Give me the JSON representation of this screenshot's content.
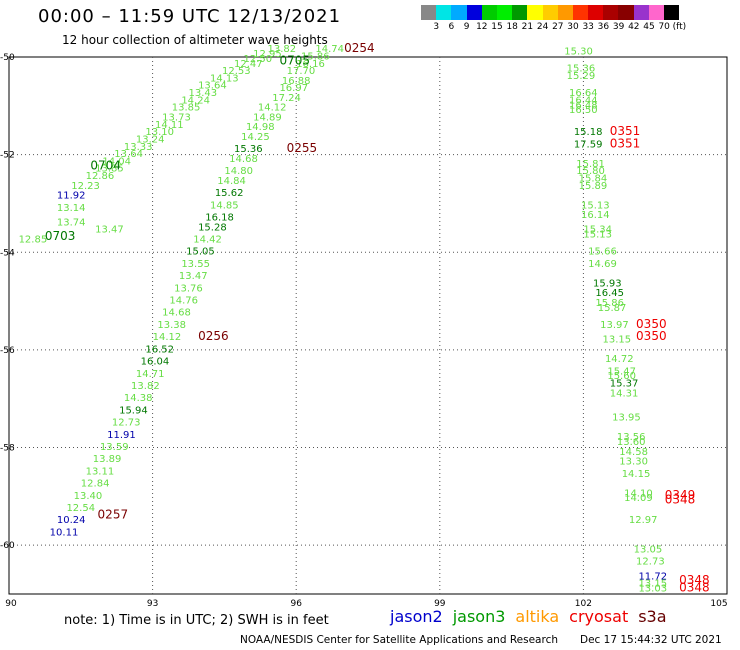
{
  "header": {
    "title": "00:00 – 11:59 UTC 12/13/2021",
    "subtitle": "12 hour collection of altimeter wave heights"
  },
  "scale": {
    "colors": [
      "#888888",
      "#00e5e5",
      "#00aaff",
      "#0000dd",
      "#00cc00",
      "#00ee00",
      "#009900",
      "#ffff00",
      "#ffcc00",
      "#ff9900",
      "#ff3300",
      "#dd0000",
      "#aa0000",
      "#880000",
      "#9933cc",
      "#ff66cc",
      "#000000"
    ],
    "labels": [
      "3",
      "6",
      "9",
      "12",
      "15",
      "18",
      "21",
      "24",
      "27",
      "30",
      "33",
      "36",
      "39",
      "42",
      "45",
      "70",
      "(ft)"
    ]
  },
  "axes": {
    "x_ticks": [
      "90",
      "93",
      "96",
      "99",
      "102",
      "105"
    ],
    "y_ticks": [
      "-50",
      "-52",
      "-54",
      "-56",
      "-58",
      "-60"
    ]
  },
  "colors": {
    "light": "#66dd44",
    "dark": "#007700",
    "jason2": "#0000aa",
    "time_dark": "#7a0000",
    "time_red": "#ee0000"
  },
  "track_a": [
    {
      "x": 91.8,
      "y": -53.6,
      "t": "13.47",
      "c": "light"
    },
    {
      "x": 90.2,
      "y": -53.8,
      "t": "12.85",
      "c": "light"
    },
    {
      "x": 91.0,
      "y": -53.45,
      "t": "13.74",
      "c": "light"
    },
    {
      "x": 91.0,
      "y": -53.15,
      "t": "13.14",
      "c": "light"
    },
    {
      "x": 91.0,
      "y": -52.9,
      "t": "11.92",
      "c": "jason2"
    },
    {
      "x": 91.3,
      "y": -52.7,
      "t": "12.23",
      "c": "light"
    },
    {
      "x": 91.6,
      "y": -52.5,
      "t": "12.86",
      "c": "light"
    },
    {
      "x": 91.8,
      "y": -52.35,
      "t": "13.85",
      "c": "light"
    },
    {
      "x": 91.95,
      "y": -52.2,
      "t": "14.04",
      "c": "light"
    },
    {
      "x": 92.2,
      "y": -52.05,
      "t": "13.64",
      "c": "light"
    },
    {
      "x": 92.4,
      "y": -51.9,
      "t": "13.33",
      "c": "light"
    },
    {
      "x": 92.65,
      "y": -51.75,
      "t": "13.24",
      "c": "light"
    },
    {
      "x": 92.85,
      "y": -51.6,
      "t": "13.10",
      "c": "light"
    },
    {
      "x": 93.05,
      "y": -51.45,
      "t": "14.11",
      "c": "light"
    },
    {
      "x": 93.2,
      "y": -51.3,
      "t": "13.73",
      "c": "light"
    },
    {
      "x": 93.4,
      "y": -51.1,
      "t": "13.85",
      "c": "light"
    },
    {
      "x": 93.6,
      "y": -50.95,
      "t": "14.24",
      "c": "light"
    },
    {
      "x": 93.75,
      "y": -50.8,
      "t": "13.43",
      "c": "light"
    },
    {
      "x": 93.95,
      "y": -50.65,
      "t": "13.64",
      "c": "light"
    },
    {
      "x": 94.2,
      "y": -50.5,
      "t": "14.13",
      "c": "light"
    },
    {
      "x": 94.45,
      "y": -50.35,
      "t": "12.53",
      "c": "light"
    },
    {
      "x": 94.7,
      "y": -50.2,
      "t": "12.47",
      "c": "light"
    },
    {
      "x": 94.9,
      "y": -50.1,
      "t": "12.50",
      "c": "light"
    },
    {
      "x": 95.1,
      "y": -50.0,
      "t": "12.95",
      "c": "light"
    },
    {
      "x": 95.4,
      "y": -49.9,
      "t": "13.82",
      "c": "light"
    }
  ],
  "track_b": [
    {
      "x": 96.4,
      "y": -49.9,
      "t": "14.74",
      "c": "light"
    },
    {
      "x": 96.1,
      "y": -50.05,
      "t": "15.86",
      "c": "light"
    },
    {
      "x": 96.0,
      "y": -50.2,
      "t": "16.16",
      "c": "light"
    },
    {
      "x": 95.8,
      "y": -50.35,
      "t": "17.70",
      "c": "light"
    },
    {
      "x": 95.7,
      "y": -50.55,
      "t": "16.88",
      "c": "light"
    },
    {
      "x": 95.65,
      "y": -50.7,
      "t": "16.97",
      "c": "light"
    },
    {
      "x": 95.5,
      "y": -50.9,
      "t": "17.24",
      "c": "light"
    },
    {
      "x": 95.2,
      "y": -51.1,
      "t": "14.12",
      "c": "light"
    },
    {
      "x": 95.1,
      "y": -51.3,
      "t": "14.89",
      "c": "light"
    },
    {
      "x": 94.95,
      "y": -51.5,
      "t": "14.98",
      "c": "light"
    },
    {
      "x": 94.85,
      "y": -51.7,
      "t": "14.25",
      "c": "light"
    },
    {
      "x": 94.7,
      "y": -51.95,
      "t": "15.36",
      "c": "dark"
    },
    {
      "x": 94.6,
      "y": -52.15,
      "t": "14.68",
      "c": "light"
    },
    {
      "x": 94.5,
      "y": -52.4,
      "t": "14.80",
      "c": "light"
    },
    {
      "x": 94.35,
      "y": -52.6,
      "t": "14.84",
      "c": "light"
    },
    {
      "x": 94.3,
      "y": -52.85,
      "t": "15.62",
      "c": "dark"
    },
    {
      "x": 94.2,
      "y": -53.1,
      "t": "14.85",
      "c": "light"
    },
    {
      "x": 94.1,
      "y": -53.35,
      "t": "16.18",
      "c": "dark"
    },
    {
      "x": 93.95,
      "y": -53.55,
      "t": "15.28",
      "c": "dark"
    },
    {
      "x": 93.85,
      "y": -53.8,
      "t": "14.42",
      "c": "light"
    },
    {
      "x": 93.7,
      "y": -54.05,
      "t": "15.05",
      "c": "dark"
    },
    {
      "x": 93.6,
      "y": -54.3,
      "t": "13.55",
      "c": "light"
    },
    {
      "x": 93.55,
      "y": -54.55,
      "t": "13.47",
      "c": "light"
    },
    {
      "x": 93.45,
      "y": -54.8,
      "t": "13.76",
      "c": "light"
    },
    {
      "x": 93.35,
      "y": -55.05,
      "t": "14.76",
      "c": "light"
    },
    {
      "x": 93.2,
      "y": -55.3,
      "t": "14.68",
      "c": "light"
    },
    {
      "x": 93.1,
      "y": -55.55,
      "t": "13.38",
      "c": "light"
    },
    {
      "x": 93.0,
      "y": -55.8,
      "t": "14.12",
      "c": "light"
    },
    {
      "x": 92.85,
      "y": -56.05,
      "t": "16.52",
      "c": "dark"
    },
    {
      "x": 92.75,
      "y": -56.3,
      "t": "16.04",
      "c": "dark"
    },
    {
      "x": 92.65,
      "y": -56.55,
      "t": "14.71",
      "c": "light"
    },
    {
      "x": 92.55,
      "y": -56.8,
      "t": "13.82",
      "c": "light"
    },
    {
      "x": 92.4,
      "y": -57.05,
      "t": "14.38",
      "c": "light"
    },
    {
      "x": 92.3,
      "y": -57.3,
      "t": "15.94",
      "c": "dark"
    },
    {
      "x": 92.15,
      "y": -57.55,
      "t": "12.73",
      "c": "light"
    },
    {
      "x": 92.05,
      "y": -57.8,
      "t": "11.91",
      "c": "jason2"
    },
    {
      "x": 91.9,
      "y": -58.05,
      "t": "13.59",
      "c": "light"
    },
    {
      "x": 91.75,
      "y": -58.3,
      "t": "13.89",
      "c": "light"
    },
    {
      "x": 91.6,
      "y": -58.55,
      "t": "13.11",
      "c": "light"
    },
    {
      "x": 91.5,
      "y": -58.8,
      "t": "12.84",
      "c": "light"
    },
    {
      "x": 91.35,
      "y": -59.05,
      "t": "13.40",
      "c": "light"
    },
    {
      "x": 91.2,
      "y": -59.3,
      "t": "12.54",
      "c": "light"
    },
    {
      "x": 91.0,
      "y": -59.55,
      "t": "10.24",
      "c": "jason2"
    },
    {
      "x": 90.85,
      "y": -59.8,
      "t": "10.11",
      "c": "jason2"
    }
  ],
  "track_c": [
    {
      "x": 101.6,
      "y": -49.95,
      "t": "15.30",
      "c": "light"
    },
    {
      "x": 101.65,
      "y": -50.3,
      "t": "15.36",
      "c": "light"
    },
    {
      "x": 101.65,
      "y": -50.45,
      "t": "15.29",
      "c": "light"
    },
    {
      "x": 101.7,
      "y": -50.8,
      "t": "16.64",
      "c": "light"
    },
    {
      "x": 101.7,
      "y": -50.95,
      "t": "16.44",
      "c": "light"
    },
    {
      "x": 101.7,
      "y": -51.05,
      "t": "16.48",
      "c": "light"
    },
    {
      "x": 101.7,
      "y": -51.15,
      "t": "16.50",
      "c": "light"
    },
    {
      "x": 101.8,
      "y": -51.6,
      "t": "15.18",
      "c": "dark"
    },
    {
      "x": 101.8,
      "y": -51.85,
      "t": "17.59",
      "c": "dark"
    },
    {
      "x": 101.85,
      "y": -52.25,
      "t": "15.81",
      "c": "light"
    },
    {
      "x": 101.85,
      "y": -52.4,
      "t": "15.80",
      "c": "light"
    },
    {
      "x": 101.9,
      "y": -52.55,
      "t": "15.84",
      "c": "light"
    },
    {
      "x": 101.9,
      "y": -52.7,
      "t": "15.89",
      "c": "light"
    },
    {
      "x": 101.95,
      "y": -53.1,
      "t": "15.13",
      "c": "light"
    },
    {
      "x": 101.95,
      "y": -53.3,
      "t": "16.14",
      "c": "light"
    },
    {
      "x": 102.0,
      "y": -53.6,
      "t": "15.34",
      "c": "light"
    },
    {
      "x": 102.0,
      "y": -53.7,
      "t": "15.13",
      "c": "light"
    },
    {
      "x": 102.1,
      "y": -54.05,
      "t": "15.66",
      "c": "light"
    },
    {
      "x": 102.1,
      "y": -54.3,
      "t": "14.69",
      "c": "light"
    },
    {
      "x": 102.2,
      "y": -54.7,
      "t": "15.93",
      "c": "dark"
    },
    {
      "x": 102.25,
      "y": -54.9,
      "t": "16.45",
      "c": "dark"
    },
    {
      "x": 102.25,
      "y": -55.1,
      "t": "15.86",
      "c": "light"
    },
    {
      "x": 102.3,
      "y": -55.2,
      "t": "15.87",
      "c": "light"
    },
    {
      "x": 102.35,
      "y": -55.55,
      "t": "13.97",
      "c": "light"
    },
    {
      "x": 102.4,
      "y": -55.85,
      "t": "13.15",
      "c": "light"
    },
    {
      "x": 102.45,
      "y": -56.25,
      "t": "14.72",
      "c": "light"
    },
    {
      "x": 102.5,
      "y": -56.5,
      "t": "15.47",
      "c": "light"
    },
    {
      "x": 102.5,
      "y": -56.6,
      "t": "15.60",
      "c": "light"
    },
    {
      "x": 102.55,
      "y": -56.75,
      "t": "15.37",
      "c": "dark"
    },
    {
      "x": 102.55,
      "y": -56.95,
      "t": "14.31",
      "c": "light"
    },
    {
      "x": 102.6,
      "y": -57.45,
      "t": "13.95",
      "c": "light"
    },
    {
      "x": 102.7,
      "y": -57.85,
      "t": "13.56",
      "c": "light"
    },
    {
      "x": 102.7,
      "y": -57.95,
      "t": "13.60",
      "c": "light"
    },
    {
      "x": 102.75,
      "y": -58.15,
      "t": "14.58",
      "c": "light"
    },
    {
      "x": 102.75,
      "y": -58.35,
      "t": "13.30",
      "c": "light"
    },
    {
      "x": 102.8,
      "y": -58.6,
      "t": "14.15",
      "c": "light"
    },
    {
      "x": 102.85,
      "y": -59.0,
      "t": "14.10",
      "c": "light"
    },
    {
      "x": 102.85,
      "y": -59.1,
      "t": "14.09",
      "c": "light"
    },
    {
      "x": 102.95,
      "y": -59.55,
      "t": "12.97",
      "c": "light"
    },
    {
      "x": 103.05,
      "y": -60.15,
      "t": "13.05",
      "c": "light"
    },
    {
      "x": 103.1,
      "y": -60.4,
      "t": "12.73",
      "c": "light"
    },
    {
      "x": 103.15,
      "y": -60.7,
      "t": "11.72",
      "c": "jason2"
    },
    {
      "x": 103.15,
      "y": -60.85,
      "t": "13.15",
      "c": "light"
    },
    {
      "x": 103.15,
      "y": -60.95,
      "t": "13.03",
      "c": "light"
    }
  ],
  "times": [
    {
      "x": 97.0,
      "y": -49.9,
      "t": "0254",
      "c": "time_dark"
    },
    {
      "x": 95.65,
      "y": -50.15,
      "t": "0705",
      "c": "dark"
    },
    {
      "x": 91.7,
      "y": -52.3,
      "t": "0704",
      "c": "dark"
    },
    {
      "x": 90.75,
      "y": -53.75,
      "t": "0703",
      "c": "dark"
    },
    {
      "x": 95.8,
      "y": -51.95,
      "t": "0255",
      "c": "time_dark"
    },
    {
      "x": 93.95,
      "y": -55.8,
      "t": "0256",
      "c": "time_dark"
    },
    {
      "x": 91.85,
      "y": -59.45,
      "t": "0257",
      "c": "time_dark"
    },
    {
      "x": 102.55,
      "y": -51.6,
      "t": "0351",
      "c": "time_red"
    },
    {
      "x": 102.55,
      "y": -51.85,
      "t": "0351",
      "c": "time_red"
    },
    {
      "x": 103.1,
      "y": -55.55,
      "t": "0350",
      "c": "time_red"
    },
    {
      "x": 103.1,
      "y": -55.8,
      "t": "0350",
      "c": "time_red"
    },
    {
      "x": 103.7,
      "y": -59.05,
      "t": "0349",
      "c": "time_red"
    },
    {
      "x": 103.7,
      "y": -59.15,
      "t": "0348",
      "c": "time_red"
    },
    {
      "x": 104.0,
      "y": -60.8,
      "t": "0348",
      "c": "time_red"
    },
    {
      "x": 104.0,
      "y": -60.95,
      "t": "0348",
      "c": "time_red"
    }
  ],
  "footer": {
    "note": "note: 1) Time is in UTC; 2) SWH is in feet",
    "legend": [
      {
        "name": "jason2",
        "color": "#0000cc"
      },
      {
        "name": "jason3",
        "color": "#009900"
      },
      {
        "name": "altika",
        "color": "#ff9900"
      },
      {
        "name": "cryosat",
        "color": "#ee0000"
      },
      {
        "name": "s3a",
        "color": "#660000"
      }
    ],
    "credit": "NOAA/NESDIS Center for Satellite Applications and Research",
    "timestamp": "Dec 17 15:44:32 UTC 2021"
  }
}
